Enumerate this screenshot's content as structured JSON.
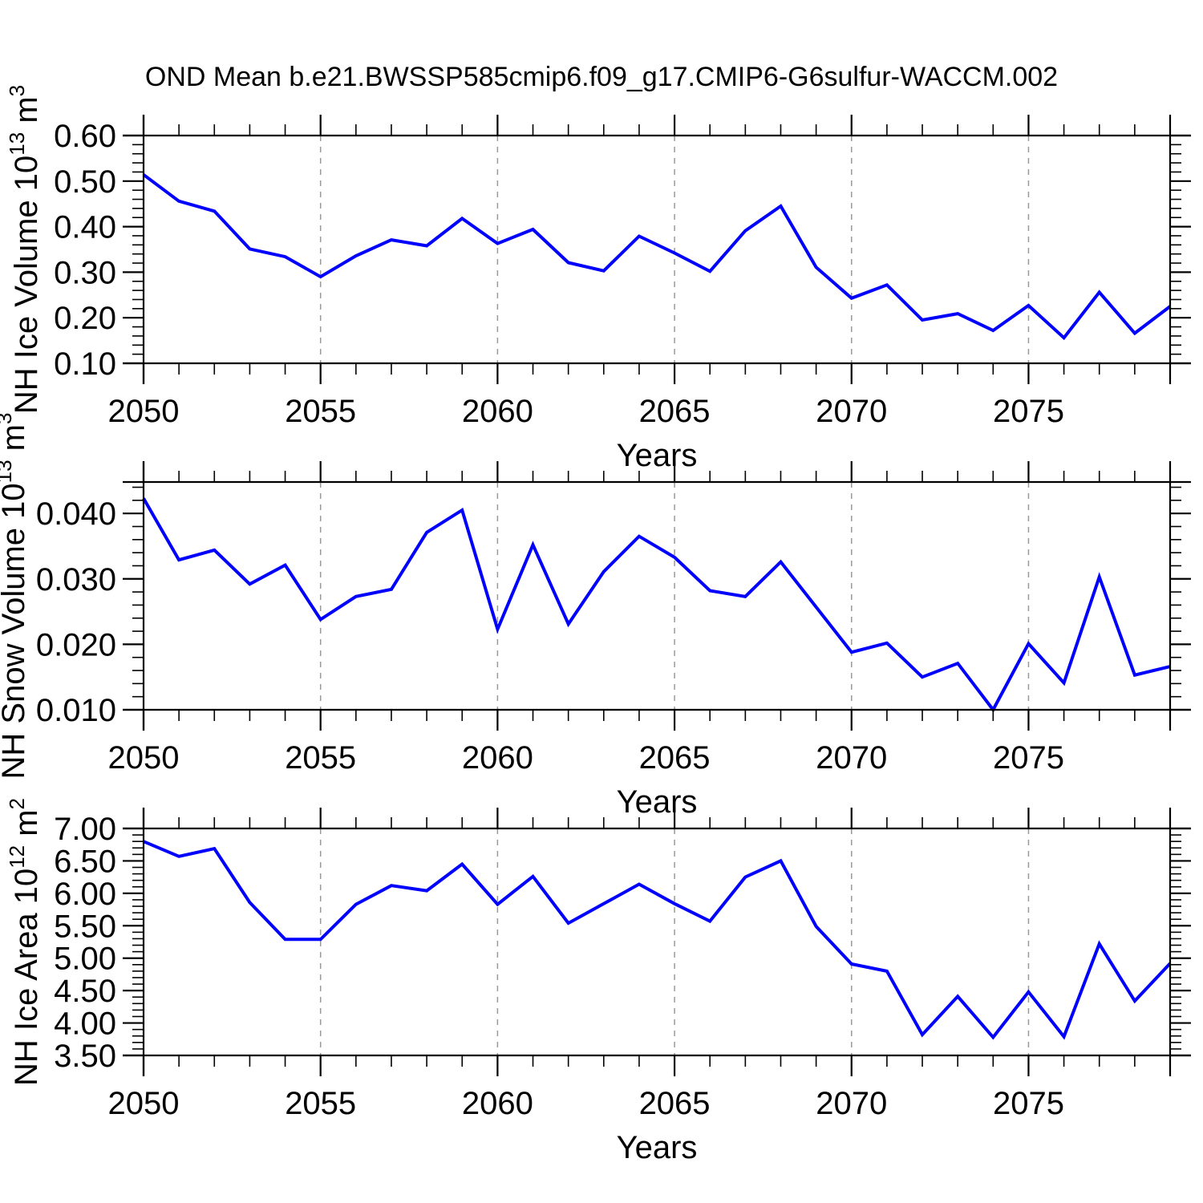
{
  "title": "OND Mean b.e21.BWSSP585cmip6.f09_g17.CMIP6-G6sulfur-WACCM.002",
  "colors": {
    "line": "#0000ff",
    "axis": "#000000",
    "grid": "#999999",
    "text": "#000000",
    "background": "#ffffff"
  },
  "chart_data": [
    {
      "type": "line",
      "name": "nh-ice-volume",
      "ylabel": "NH Ice Volume 10^13 m^3",
      "ylabel_parts": [
        {
          "t": "NH Ice Volume 10"
        },
        {
          "t": "13",
          "sup": true
        },
        {
          "t": " m"
        },
        {
          "t": "3",
          "sup": true
        }
      ],
      "xlabel": "Years",
      "years": [
        2050,
        2051,
        2052,
        2053,
        2054,
        2055,
        2056,
        2057,
        2058,
        2059,
        2060,
        2061,
        2062,
        2063,
        2064,
        2065,
        2066,
        2067,
        2068,
        2069,
        2070,
        2071,
        2072,
        2073,
        2074,
        2075,
        2076,
        2077,
        2078,
        2079
      ],
      "values": [
        0.514,
        0.456,
        0.434,
        0.351,
        0.334,
        0.29,
        0.336,
        0.371,
        0.358,
        0.418,
        0.363,
        0.394,
        0.321,
        0.303,
        0.379,
        0.342,
        0.302,
        0.391,
        0.445,
        0.311,
        0.243,
        0.272,
        0.195,
        0.209,
        0.172,
        0.227,
        0.156,
        0.256,
        0.166,
        0.225
      ],
      "ylim": [
        0.1,
        0.6
      ],
      "ytick_values": [
        0.1,
        0.2,
        0.3,
        0.4,
        0.5,
        0.6
      ],
      "ytick_labels": [
        "0.10",
        "0.20",
        "0.30",
        "0.40",
        "0.50",
        "0.60"
      ],
      "ytick_minor_step": 0.02,
      "xlim": [
        2050,
        2079
      ],
      "xtick_major": [
        2050,
        2055,
        2060,
        2065,
        2070,
        2075
      ],
      "xtick_labels": [
        "2050",
        "2055",
        "2060",
        "2065",
        "2070",
        "2075"
      ],
      "xgrid": [
        2055,
        2060,
        2065,
        2070,
        2075
      ],
      "grid": "vertical-dashed"
    },
    {
      "type": "line",
      "name": "nh-snow-volume",
      "ylabel": "NH Snow Volume 10^13 m^3",
      "ylabel_parts": [
        {
          "t": "NH Snow Volume 10"
        },
        {
          "t": "13",
          "sup": true
        },
        {
          "t": " m"
        },
        {
          "t": "3",
          "sup": true
        }
      ],
      "xlabel": "Years",
      "years": [
        2050,
        2051,
        2052,
        2053,
        2054,
        2055,
        2056,
        2057,
        2058,
        2059,
        2060,
        2061,
        2062,
        2063,
        2064,
        2065,
        2066,
        2067,
        2068,
        2069,
        2070,
        2071,
        2072,
        2073,
        2074,
        2075,
        2076,
        2077,
        2078,
        2079
      ],
      "values": [
        0.0423,
        0.0329,
        0.0344,
        0.0292,
        0.0321,
        0.0238,
        0.0273,
        0.0284,
        0.0371,
        0.0405,
        0.0223,
        0.0352,
        0.0231,
        0.0311,
        0.0365,
        0.0333,
        0.0282,
        0.0273,
        0.0326,
        0.0257,
        0.0188,
        0.0202,
        0.015,
        0.0171,
        0.01,
        0.0201,
        0.0141,
        0.0303,
        0.0153,
        0.0166
      ],
      "ylim": [
        0.01,
        0.0448
      ],
      "ytick_values": [
        0.01,
        0.02,
        0.03,
        0.04
      ],
      "ytick_labels": [
        "0.010",
        "0.020",
        "0.030",
        "0.040"
      ],
      "ytick_minor_step": 0.002,
      "xlim": [
        2050,
        2079
      ],
      "xtick_major": [
        2050,
        2055,
        2060,
        2065,
        2070,
        2075
      ],
      "xtick_labels": [
        "2050",
        "2055",
        "2060",
        "2065",
        "2070",
        "2075"
      ],
      "xgrid": [
        2055,
        2060,
        2065,
        2070,
        2075
      ],
      "grid": "vertical-dashed"
    },
    {
      "type": "line",
      "name": "nh-ice-area",
      "ylabel": "NH Ice Area 10^12 m^2",
      "ylabel_parts": [
        {
          "t": "NH Ice Area 10"
        },
        {
          "t": "12",
          "sup": true
        },
        {
          "t": " m"
        },
        {
          "t": "2",
          "sup": true
        }
      ],
      "xlabel": "Years",
      "years": [
        2050,
        2051,
        2052,
        2053,
        2054,
        2055,
        2056,
        2057,
        2058,
        2059,
        2060,
        2061,
        2062,
        2063,
        2064,
        2065,
        2066,
        2067,
        2068,
        2069,
        2070,
        2071,
        2072,
        2073,
        2074,
        2075,
        2076,
        2077,
        2078,
        2079
      ],
      "values": [
        6.8,
        6.57,
        6.69,
        5.86,
        5.29,
        5.29,
        5.83,
        6.12,
        6.04,
        6.45,
        5.83,
        6.26,
        5.54,
        5.84,
        6.14,
        5.84,
        5.57,
        6.25,
        6.5,
        5.49,
        4.91,
        4.8,
        3.82,
        4.41,
        3.78,
        4.48,
        3.79,
        5.22,
        4.34,
        4.92
      ],
      "ylim": [
        3.5,
        7.0
      ],
      "ytick_values": [
        3.5,
        4.0,
        4.5,
        5.0,
        5.5,
        6.0,
        6.5,
        7.0
      ],
      "ytick_labels": [
        "3.50",
        "4.00",
        "4.50",
        "5.00",
        "5.50",
        "6.00",
        "6.50",
        "7.00"
      ],
      "ytick_minor_step": 0.1,
      "xlim": [
        2050,
        2079
      ],
      "xtick_major": [
        2050,
        2055,
        2060,
        2065,
        2070,
        2075
      ],
      "xtick_labels": [
        "2050",
        "2055",
        "2060",
        "2065",
        "2070",
        "2075"
      ],
      "xgrid": [
        2055,
        2060,
        2065,
        2070,
        2075
      ],
      "grid": "vertical-dashed"
    }
  ]
}
